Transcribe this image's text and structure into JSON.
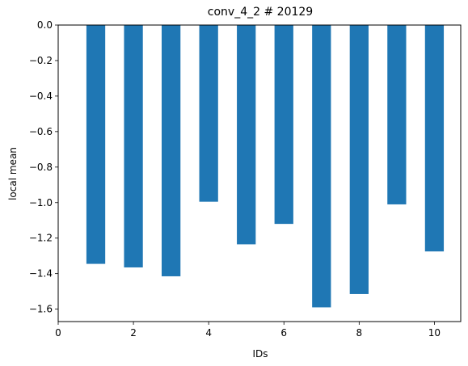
{
  "chart_data": {
    "type": "bar",
    "title": "conv_4_2 # 20129",
    "xlabel": "IDs",
    "ylabel": "local mean",
    "x": [
      1,
      2,
      3,
      4,
      5,
      6,
      7,
      8,
      9,
      10
    ],
    "values": [
      -1.345,
      -1.365,
      -1.415,
      -0.995,
      -1.235,
      -1.12,
      -1.59,
      -1.515,
      -1.01,
      -1.275
    ],
    "bar_width": 0.5,
    "xlim": [
      0,
      10.7
    ],
    "ylim": [
      -1.67,
      0.0
    ],
    "xticks": [
      0,
      2,
      4,
      6,
      8,
      10
    ],
    "xtick_labels": [
      "0",
      "2",
      "4",
      "6",
      "8",
      "10"
    ],
    "yticks": [
      0.0,
      -0.2,
      -0.4,
      -0.6,
      -0.8,
      -1.0,
      -1.2,
      -1.4,
      -1.6
    ],
    "ytick_labels": [
      "0.0",
      "−0.2",
      "−0.4",
      "−0.6",
      "−0.8",
      "−1.0",
      "−1.2",
      "−1.4",
      "−1.6"
    ],
    "grid": false,
    "bar_color": "#1f77b4"
  }
}
